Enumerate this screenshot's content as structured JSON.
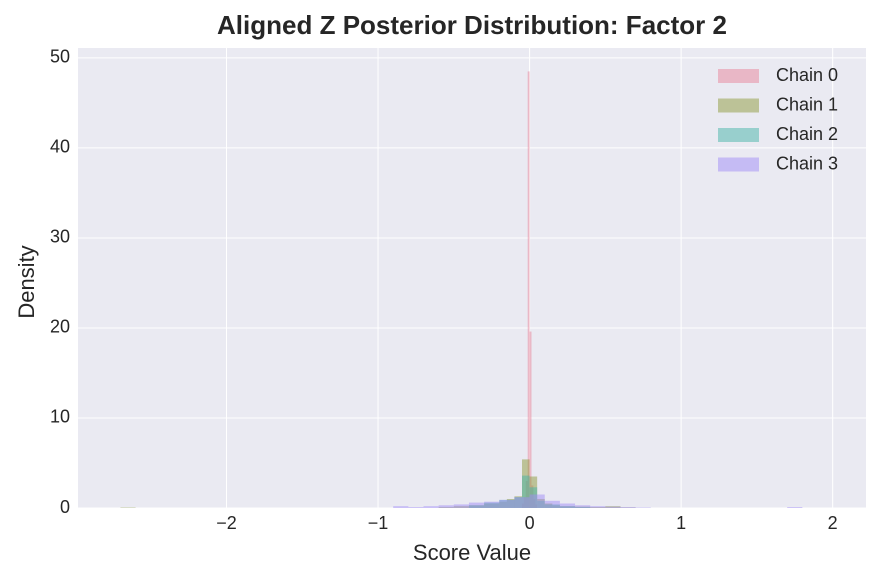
{
  "chart_data": {
    "type": "histogram",
    "title": "Aligned Z Posterior Distribution: Factor 2",
    "xlabel": "Score Value",
    "ylabel": "Density",
    "xlim": [
      -2.98,
      2.22
    ],
    "ylim": [
      0,
      51.1
    ],
    "xticks": [
      {
        "value": -2,
        "label": "−2"
      },
      {
        "value": -1,
        "label": "−1"
      },
      0,
      1,
      2
    ],
    "yticks": [
      0,
      10,
      20,
      30,
      40,
      50
    ],
    "grid": true,
    "legend": "upper right",
    "alpha": 0.5,
    "series": [
      {
        "name": "Chain 0",
        "color": "#e8849a",
        "bins": [
          -0.05,
          -0.0375,
          -0.025,
          -0.0125,
          0,
          0.0125,
          0.025,
          0.0375,
          0.05
        ],
        "values": [
          0.5,
          1.2,
          3.0,
          48.5,
          19.6,
          2.5,
          1.0,
          0.4
        ]
      },
      {
        "name": "Chain 1",
        "color": "#8e9a3c",
        "bins": [
          -2.7,
          -2.6,
          -0.6,
          -0.5,
          -0.4,
          -0.3,
          -0.2,
          -0.15,
          -0.1,
          -0.05,
          0,
          0.05,
          0.1,
          0.15,
          0.2,
          0.3,
          0.4,
          0.5,
          0.6,
          0.7
        ],
        "values": [
          0.05,
          0,
          0.1,
          0.2,
          0.3,
          0.5,
          0.7,
          1.0,
          1.3,
          5.4,
          3.5,
          1.0,
          0.5,
          0.3,
          0.2,
          0.15,
          0.1,
          0.2,
          0.05
        ]
      },
      {
        "name": "Chain 2",
        "color": "#45b3a8",
        "bins": [
          -0.4,
          -0.3,
          -0.2,
          -0.1,
          -0.05,
          0,
          0.05,
          0.1,
          0.2,
          0.3,
          0.4
        ],
        "values": [
          0.3,
          0.6,
          0.9,
          1.2,
          3.6,
          2.3,
          0.8,
          0.4,
          0.2,
          0.1
        ]
      },
      {
        "name": "Chain 3",
        "color": "#a08cf5",
        "bins": [
          -0.9,
          -0.8,
          -0.7,
          -0.6,
          -0.5,
          -0.4,
          -0.3,
          -0.2,
          -0.1,
          0,
          0.1,
          0.2,
          0.3,
          0.4,
          0.5,
          0.6,
          0.7,
          0.8,
          1.7,
          1.8,
          1.9
        ],
        "values": [
          0.2,
          0.1,
          0.2,
          0.3,
          0.4,
          0.6,
          0.7,
          0.9,
          1.2,
          1.5,
          0.8,
          0.5,
          0.3,
          0.2,
          0.15,
          0.1,
          0.05,
          0,
          0.1,
          0
        ]
      }
    ]
  }
}
